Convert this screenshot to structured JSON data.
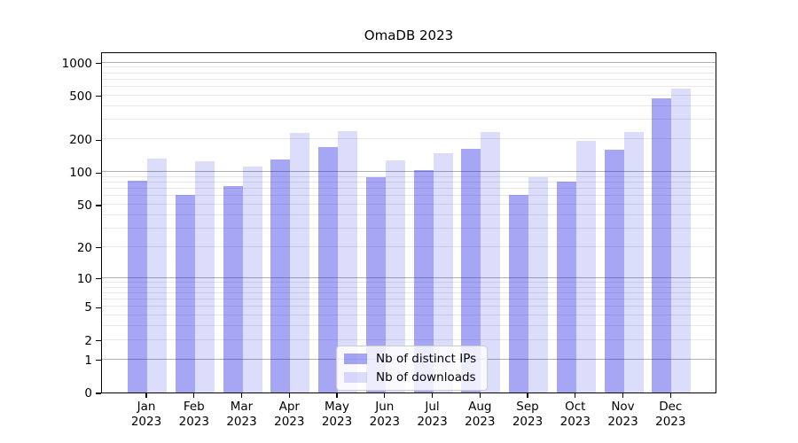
{
  "chart": {
    "title": "OmaDB 2023",
    "legend": {
      "items": [
        {
          "label": "Nb of distinct IPs",
          "color": "rgba(20,20,230,0.38)"
        },
        {
          "label": "Nb of downloads",
          "color": "rgba(20,20,230,0.15)"
        }
      ]
    }
  },
  "chart_data": {
    "type": "bar",
    "title": "OmaDB 2023",
    "categories": [
      "Jan 2023",
      "Feb 2023",
      "Mar 2023",
      "Apr 2023",
      "May 2023",
      "Jun 2023",
      "Jul 2023",
      "Aug 2023",
      "Sep 2023",
      "Oct 2023",
      "Nov 2023",
      "Dec 2023"
    ],
    "series": [
      {
        "name": "Nb of distinct IPs",
        "color": "rgba(20,20,230,0.38)",
        "values": [
          84,
          62,
          75,
          130,
          170,
          89,
          105,
          163,
          62,
          82,
          159,
          474
        ]
      },
      {
        "name": "Nb of downloads",
        "color": "rgba(20,20,230,0.15)",
        "values": [
          132,
          126,
          113,
          228,
          235,
          128,
          148,
          233,
          90,
          192,
          234,
          581
        ]
      }
    ],
    "xlabel": "",
    "ylabel": "",
    "yscale": "log1p",
    "ylim": [
      0,
      1260
    ],
    "yticks": [
      0,
      1,
      2,
      5,
      10,
      20,
      50,
      100,
      200,
      500,
      1000
    ],
    "grid": {
      "on": true,
      "major": [
        1,
        10,
        100,
        1000
      ],
      "minor": [
        2,
        3,
        4,
        5,
        6,
        7,
        8,
        9,
        20,
        30,
        40,
        50,
        60,
        70,
        80,
        90,
        200,
        300,
        400,
        500,
        600,
        700,
        800,
        900
      ]
    },
    "legend_position": "lower center"
  },
  "colors": {
    "grid_major": "#b0b0b0",
    "grid_minor": "#e7e7e7",
    "spine": "#000000",
    "background": "#ffffff"
  }
}
